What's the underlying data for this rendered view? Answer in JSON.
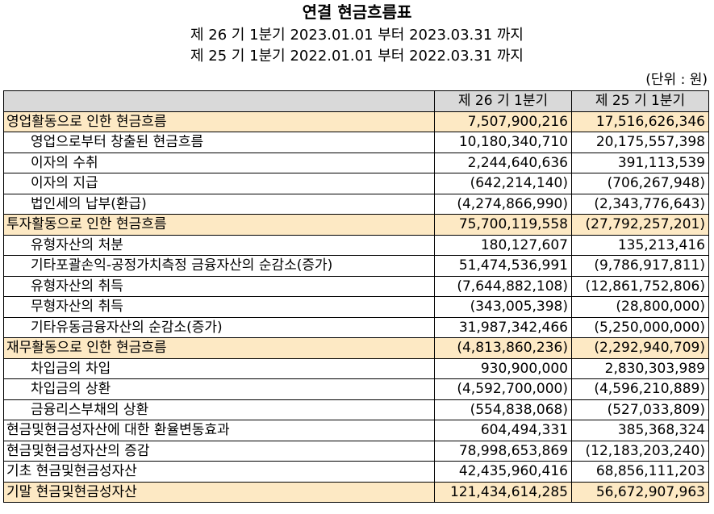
{
  "title": "연결 현금흐름표",
  "period_current": "제 26 기 1분기 2023.01.01 부터 2023.03.31 까지",
  "period_prior": "제 25 기 1분기 2022.01.01 부터 2022.03.31 까지",
  "unit": "(단위 : 원)",
  "columns": [
    "",
    "제 26 기 1분기",
    "제 25 기 1분기"
  ],
  "rows": [
    {
      "label": "영업활동으로 인한 현금흐름",
      "current": "7,507,900,216",
      "prior": "17,516,626,346",
      "highlight": true,
      "indent": false
    },
    {
      "label": "영업으로부터 창출된 현금흐름",
      "current": "10,180,340,710",
      "prior": "20,175,557,398",
      "highlight": false,
      "indent": true
    },
    {
      "label": "이자의 수취",
      "current": "2,244,640,636",
      "prior": "391,113,539",
      "highlight": false,
      "indent": true
    },
    {
      "label": "이자의 지급",
      "current": "(642,214,140)",
      "prior": "(706,267,948)",
      "highlight": false,
      "indent": true
    },
    {
      "label": "법인세의 납부(환급)",
      "current": "(4,274,866,990)",
      "prior": "(2,343,776,643)",
      "highlight": false,
      "indent": true
    },
    {
      "label": "투자활동으로 인한 현금흐름",
      "current": "75,700,119,558",
      "prior": "(27,792,257,201)",
      "highlight": true,
      "indent": false
    },
    {
      "label": "유형자산의 처분",
      "current": "180,127,607",
      "prior": "135,213,416",
      "highlight": false,
      "indent": true
    },
    {
      "label": "기타포괄손익-공정가치측정 금융자산의 순감소(증가)",
      "current": "51,474,536,991",
      "prior": "(9,786,917,811)",
      "highlight": false,
      "indent": true
    },
    {
      "label": "유형자산의 취득",
      "current": "(7,644,882,108)",
      "prior": "(12,861,752,806)",
      "highlight": false,
      "indent": true
    },
    {
      "label": "무형자산의 취득",
      "current": "(343,005,398)",
      "prior": "(28,800,000)",
      "highlight": false,
      "indent": true
    },
    {
      "label": "기타유동금융자산의 순감소(증가)",
      "current": "31,987,342,466",
      "prior": "(5,250,000,000)",
      "highlight": false,
      "indent": true
    },
    {
      "label": "재무활동으로 인한 현금흐름",
      "current": "(4,813,860,236)",
      "prior": "(2,292,940,709)",
      "highlight": true,
      "indent": false
    },
    {
      "label": "차입금의 차입",
      "current": "930,900,000",
      "prior": "2,830,303,989",
      "highlight": false,
      "indent": true
    },
    {
      "label": "차입금의 상환",
      "current": "(4,592,700,000)",
      "prior": "(4,596,210,889)",
      "highlight": false,
      "indent": true
    },
    {
      "label": "금융리스부채의 상환",
      "current": "(554,838,068)",
      "prior": "(527,033,809)",
      "highlight": false,
      "indent": true
    },
    {
      "label": "현금및현금성자산에 대한 환율변동효과",
      "current": "604,494,331",
      "prior": "385,368,324",
      "highlight": false,
      "indent": false
    },
    {
      "label": "현금및현금성자산의 증감",
      "current": "78,998,653,869",
      "prior": "(12,183,203,240)",
      "highlight": false,
      "indent": false
    },
    {
      "label": "기초 현금및현금성자산",
      "current": "42,435,960,416",
      "prior": "68,856,111,203",
      "highlight": false,
      "indent": false
    },
    {
      "label": "기말 현금및현금성자산",
      "current": "121,434,614,285",
      "prior": "56,672,907,963",
      "highlight": true,
      "indent": false
    }
  ]
}
